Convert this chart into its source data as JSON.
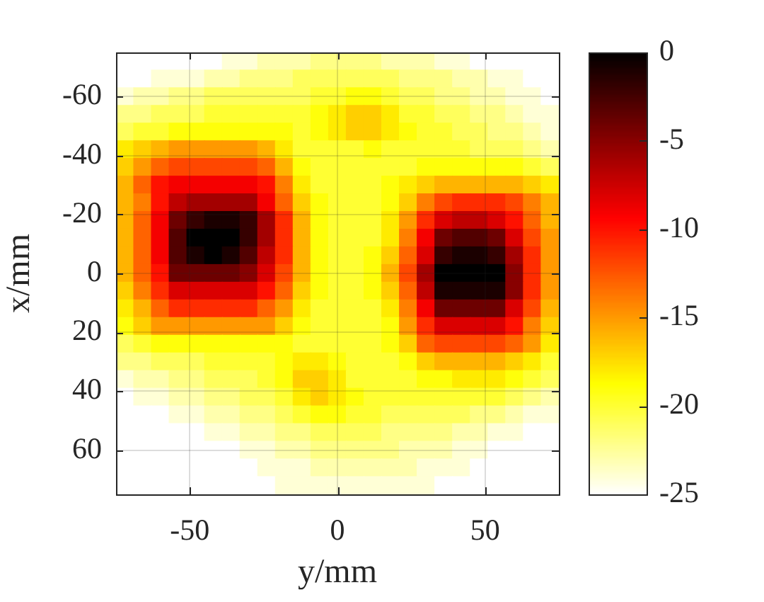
{
  "chart_data": {
    "type": "heatmap",
    "xlabel": "y/mm",
    "ylabel": "x/mm",
    "cells": [
      [
        -25,
        -25,
        -25,
        -25,
        -25,
        -25,
        -24,
        -24,
        -23,
        -23,
        -23,
        -22,
        -22,
        -22,
        -22,
        -23,
        -23,
        -23,
        -24,
        -24,
        -25,
        -25,
        -25,
        -25,
        -25
      ],
      [
        -25,
        -25,
        -24,
        -24,
        -24,
        -23,
        -23,
        -22,
        -22,
        -22,
        -21,
        -21,
        -21,
        -21,
        -21,
        -21,
        -22,
        -22,
        -22,
        -23,
        -23,
        -24,
        -24,
        -25,
        -25
      ],
      [
        -24,
        -23,
        -23,
        -22,
        -22,
        -21,
        -21,
        -21,
        -21,
        -21,
        -21,
        -20,
        -20,
        -19,
        -19,
        -20,
        -21,
        -21,
        -22,
        -22,
        -23,
        -23,
        -24,
        -24,
        -25
      ],
      [
        -22,
        -22,
        -21,
        -21,
        -21,
        -20,
        -20,
        -20,
        -20,
        -20,
        -20,
        -19,
        -18,
        -17,
        -17,
        -18,
        -20,
        -20,
        -21,
        -21,
        -22,
        -22,
        -23,
        -24,
        -24
      ],
      [
        -21,
        -20,
        -20,
        -19,
        -19,
        -19,
        -19,
        -19,
        -19,
        -19,
        -20,
        -19,
        -18,
        -17,
        -17,
        -18,
        -19,
        -20,
        -20,
        -21,
        -21,
        -22,
        -22,
        -23,
        -24
      ],
      [
        -18,
        -17,
        -16,
        -15,
        -15,
        -15,
        -15,
        -15,
        -16,
        -18,
        -20,
        -20,
        -20,
        -20,
        -19,
        -20,
        -20,
        -20,
        -20,
        -20,
        -21,
        -21,
        -21,
        -22,
        -23
      ],
      [
        -17,
        -15,
        -13,
        -12,
        -12,
        -12,
        -12,
        -12,
        -13,
        -16,
        -19,
        -20,
        -20,
        -20,
        -20,
        -20,
        -20,
        -19,
        -19,
        -19,
        -19,
        -19,
        -19,
        -20,
        -21
      ],
      [
        -16,
        -13,
        -10,
        -9,
        -9,
        -9,
        -9,
        -9,
        -10,
        -14,
        -18,
        -20,
        -20,
        -20,
        -20,
        -19,
        -18,
        -17,
        -16,
        -16,
        -16,
        -16,
        -16,
        -17,
        -18
      ],
      [
        -16,
        -14,
        -10,
        -7,
        -6,
        -6,
        -6,
        -6,
        -9,
        -13,
        -17,
        -19,
        -20,
        -20,
        -20,
        -19,
        -17,
        -14,
        -12,
        -11,
        -11,
        -11,
        -12,
        -14,
        -16
      ],
      [
        -16,
        -13,
        -9,
        -4,
        -2,
        -1,
        -1,
        -2,
        -6,
        -11,
        -16,
        -19,
        -20,
        -20,
        -20,
        -18,
        -15,
        -11,
        -8,
        -7,
        -7,
        -8,
        -10,
        -13,
        -16
      ],
      [
        -16,
        -13,
        -9,
        -3,
        0,
        0,
        0,
        -2,
        -6,
        -11,
        -16,
        -19,
        -20,
        -20,
        -20,
        -18,
        -14,
        -9,
        -4,
        -3,
        -3,
        -4,
        -8,
        -12,
        -15
      ],
      [
        -16,
        -13,
        -9,
        -3,
        -1,
        0,
        -1,
        -3,
        -7,
        -11,
        -16,
        -19,
        -20,
        -20,
        -19,
        -17,
        -13,
        -8,
        -2,
        -1,
        -1,
        -2,
        -6,
        -11,
        -15
      ],
      [
        -16,
        -13,
        -10,
        -4,
        -4,
        -4,
        -4,
        -5,
        -8,
        -12,
        -16,
        -19,
        -20,
        -20,
        -19,
        -16,
        -12,
        -6,
        0,
        0,
        0,
        0,
        -5,
        -11,
        -15
      ],
      [
        -17,
        -14,
        -11,
        -8,
        -8,
        -8,
        -8,
        -8,
        -10,
        -13,
        -17,
        -19,
        -20,
        -20,
        -19,
        -17,
        -13,
        -7,
        -1,
        -1,
        -1,
        -1,
        -5,
        -11,
        -15
      ],
      [
        -18,
        -16,
        -13,
        -11,
        -11,
        -11,
        -11,
        -11,
        -13,
        -15,
        -18,
        -20,
        -20,
        -20,
        -20,
        -18,
        -14,
        -9,
        -4,
        -4,
        -4,
        -4,
        -8,
        -12,
        -16
      ],
      [
        -19,
        -17,
        -15,
        -15,
        -15,
        -15,
        -15,
        -15,
        -15,
        -17,
        -19,
        -20,
        -20,
        -20,
        -20,
        -19,
        -15,
        -11,
        -8,
        -8,
        -8,
        -8,
        -10,
        -14,
        -17
      ],
      [
        -21,
        -20,
        -19,
        -19,
        -19,
        -19,
        -19,
        -19,
        -19,
        -19,
        -20,
        -20,
        -20,
        -20,
        -20,
        -19,
        -17,
        -13,
        -12,
        -12,
        -12,
        -12,
        -13,
        -15,
        -18
      ],
      [
        -22,
        -22,
        -21,
        -21,
        -21,
        -20,
        -20,
        -20,
        -20,
        -19,
        -18,
        -18,
        -19,
        -20,
        -20,
        -20,
        -19,
        -17,
        -16,
        -16,
        -16,
        -16,
        -17,
        -18,
        -20
      ],
      [
        -24,
        -23,
        -23,
        -22,
        -22,
        -21,
        -21,
        -21,
        -20,
        -19,
        -17,
        -17,
        -18,
        -20,
        -20,
        -20,
        -20,
        -19,
        -19,
        -18,
        -18,
        -18,
        -19,
        -20,
        -21
      ],
      [
        -25,
        -24,
        -24,
        -23,
        -23,
        -22,
        -22,
        -21,
        -21,
        -20,
        -18,
        -17,
        -18,
        -19,
        -20,
        -20,
        -20,
        -20,
        -20,
        -20,
        -20,
        -20,
        -21,
        -22,
        -23
      ],
      [
        -25,
        -25,
        -25,
        -24,
        -24,
        -23,
        -23,
        -22,
        -22,
        -21,
        -20,
        -19,
        -19,
        -20,
        -20,
        -21,
        -21,
        -21,
        -21,
        -21,
        -22,
        -22,
        -23,
        -24,
        -24
      ],
      [
        -25,
        -25,
        -25,
        -25,
        -25,
        -24,
        -24,
        -23,
        -23,
        -22,
        -22,
        -21,
        -21,
        -21,
        -21,
        -22,
        -22,
        -22,
        -22,
        -23,
        -23,
        -24,
        -24,
        -25,
        -25
      ],
      [
        -25,
        -25,
        -25,
        -25,
        -25,
        -25,
        -25,
        -24,
        -24,
        -23,
        -23,
        -22,
        -22,
        -22,
        -22,
        -22,
        -23,
        -23,
        -23,
        -24,
        -24,
        -25,
        -25,
        -25,
        -25
      ],
      [
        -25,
        -25,
        -25,
        -25,
        -25,
        -25,
        -25,
        -25,
        -24,
        -24,
        -24,
        -23,
        -23,
        -23,
        -23,
        -23,
        -23,
        -24,
        -24,
        -24,
        -25,
        -25,
        -25,
        -25,
        -25
      ],
      [
        -25,
        -25,
        -25,
        -25,
        -25,
        -25,
        -25,
        -25,
        -25,
        -24,
        -24,
        -24,
        -24,
        -24,
        -24,
        -24,
        -24,
        -24,
        -25,
        -25,
        -25,
        -25,
        -25,
        -25,
        -25
      ]
    ],
    "xlim": [
      -75,
      75
    ],
    "xticks": [
      -50,
      0,
      50
    ],
    "ylim": [
      75,
      -75
    ],
    "yticks": [
      -60,
      -40,
      -20,
      0,
      20,
      40,
      60
    ],
    "clim": [
      -25,
      0
    ],
    "cticks": [
      -25,
      -20,
      -15,
      -10,
      -5,
      0
    ],
    "grid": true
  }
}
